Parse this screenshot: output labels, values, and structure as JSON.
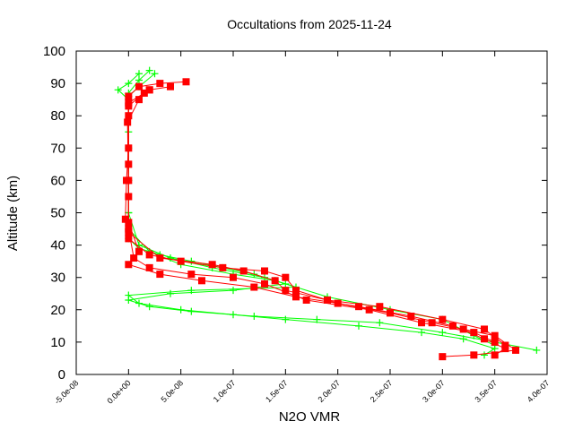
{
  "chart_data": {
    "type": "scatter",
    "title": "Occultations from 2025-11-24",
    "xlabel": "N2O VMR",
    "ylabel": "Altitude (km)",
    "xlim": [
      -5e-08,
      4e-07
    ],
    "ylim": [
      0,
      100
    ],
    "xticks": [
      "-5.0e-08",
      "0.0e+00",
      "5.0e-08",
      "1.0e-07",
      "1.5e-07",
      "2.0e-07",
      "2.5e-07",
      "3.0e-07",
      "3.5e-07",
      "4.0e-07"
    ],
    "yticks": [
      "0",
      "10",
      "20",
      "30",
      "40",
      "50",
      "60",
      "70",
      "80",
      "90",
      "100"
    ],
    "grid": false,
    "legend": "none",
    "series": [
      {
        "color": "#00ff00",
        "marker": "plus",
        "profiles": [
          [
            [
              1e-08,
              93
            ],
            [
              0,
              90
            ],
            [
              -1e-08,
              88
            ],
            [
              0,
              85
            ],
            [
              0,
              75
            ],
            [
              0,
              60
            ],
            [
              0,
              50
            ],
            [
              0,
              42
            ],
            [
              1e-08,
              39
            ],
            [
              3e-08,
              37
            ],
            [
              6e-08,
              35
            ],
            [
              9e-08,
              33
            ],
            [
              1.2e-07,
              31
            ],
            [
              1.5e-07,
              28
            ],
            [
              1e-07,
              26
            ],
            [
              4e-08,
              25
            ],
            [
              0,
              23
            ],
            [
              2e-08,
              21
            ],
            [
              6e-08,
              19.5
            ],
            [
              1.2e-07,
              18
            ],
            [
              1.8e-07,
              17
            ],
            [
              2.4e-07,
              16
            ],
            [
              3e-07,
              13
            ],
            [
              3.5e-07,
              10
            ],
            [
              3.9e-07,
              7.5
            ]
          ],
          [
            [
              2e-08,
              94
            ],
            [
              1e-08,
              91
            ],
            [
              0,
              87
            ],
            [
              0,
              70
            ],
            [
              0,
              50
            ],
            [
              1e-08,
              40
            ],
            [
              4e-08,
              36
            ],
            [
              8e-08,
              33
            ],
            [
              1.3e-07,
              30
            ],
            [
              1.6e-07,
              27
            ],
            [
              6e-08,
              26
            ],
            [
              0,
              24.5
            ],
            [
              1e-08,
              22
            ],
            [
              5e-08,
              20
            ],
            [
              1e-07,
              18.5
            ],
            [
              1.5e-07,
              17
            ],
            [
              2.2e-07,
              15
            ],
            [
              2.8e-07,
              13
            ],
            [
              3.2e-07,
              11
            ],
            [
              3.5e-07,
              8
            ],
            [
              3.4e-07,
              6
            ]
          ],
          [
            [
              2.5e-08,
              93
            ],
            [
              1e-08,
              89
            ],
            [
              0,
              86
            ],
            [
              0,
              60
            ],
            [
              0,
              45
            ],
            [
              2e-08,
              38
            ],
            [
              5e-08,
              34
            ],
            [
              1e-07,
              31
            ],
            [
              1.4e-07,
              29
            ],
            [
              1.9e-07,
              24
            ],
            [
              2.5e-07,
              20
            ],
            [
              3e-07,
              17
            ],
            [
              3.3e-07,
              12
            ],
            [
              3.5e-07,
              9
            ]
          ]
        ]
      },
      {
        "color": "#ff0000",
        "marker": "square",
        "profiles": [
          [
            [
              5.5e-08,
              90.5
            ],
            [
              3e-08,
              90
            ],
            [
              1e-08,
              89
            ],
            [
              0,
              86
            ],
            [
              0,
              80
            ],
            [
              0,
              70
            ],
            [
              -2e-09,
              60
            ],
            [
              -3e-09,
              48
            ],
            [
              0,
              42
            ],
            [
              2e-08,
              37
            ],
            [
              5e-08,
              35
            ],
            [
              9e-08,
              33
            ],
            [
              1.3e-07,
              32
            ],
            [
              1.5e-07,
              30
            ],
            [
              1.6e-07,
              26
            ],
            [
              2e-07,
              22
            ],
            [
              2.5e-07,
              19
            ],
            [
              2.9e-07,
              16
            ],
            [
              3.2e-07,
              14
            ],
            [
              3.5e-07,
              12
            ],
            [
              3.7e-07,
              7.5
            ],
            [
              3.3e-07,
              6
            ],
            [
              3e-07,
              5.5
            ]
          ],
          [
            [
              4e-08,
              89
            ],
            [
              2e-08,
              88
            ],
            [
              0,
              84
            ],
            [
              0,
              65
            ],
            [
              0,
              47
            ],
            [
              1e-08,
              38
            ],
            [
              0,
              34
            ],
            [
              3e-08,
              31
            ],
            [
              7e-08,
              29
            ],
            [
              1.2e-07,
              27
            ],
            [
              1.6e-07,
              24
            ],
            [
              2.2e-07,
              21
            ],
            [
              2.7e-07,
              18
            ],
            [
              3.1e-07,
              15
            ],
            [
              3.4e-07,
              11
            ],
            [
              3.6e-07,
              8
            ],
            [
              3.5e-07,
              6
            ]
          ],
          [
            [
              2e-08,
              88
            ],
            [
              1e-08,
              85
            ],
            [
              -1e-09,
              78
            ],
            [
              0,
              55
            ],
            [
              0,
              45
            ],
            [
              5e-09,
              36
            ],
            [
              2e-08,
              33
            ],
            [
              6e-08,
              31
            ],
            [
              1e-07,
              30
            ],
            [
              1.3e-07,
              28
            ],
            [
              1.7e-07,
              23
            ],
            [
              2.3e-07,
              20
            ],
            [
              2.8e-07,
              16
            ],
            [
              3.3e-07,
              13
            ],
            [
              3.5e-07,
              10
            ]
          ],
          [
            [
              1.5e-08,
              87
            ],
            [
              0,
              83
            ],
            [
              0,
              60
            ],
            [
              0,
              44
            ],
            [
              3e-08,
              36
            ],
            [
              8e-08,
              34
            ],
            [
              1.1e-07,
              32
            ],
            [
              1.4e-07,
              29
            ],
            [
              1.5e-07,
              26
            ],
            [
              1.9e-07,
              23
            ],
            [
              2.4e-07,
              21
            ],
            [
              3e-07,
              17
            ],
            [
              3.4e-07,
              14
            ],
            [
              3.6e-07,
              9
            ]
          ]
        ]
      }
    ]
  }
}
